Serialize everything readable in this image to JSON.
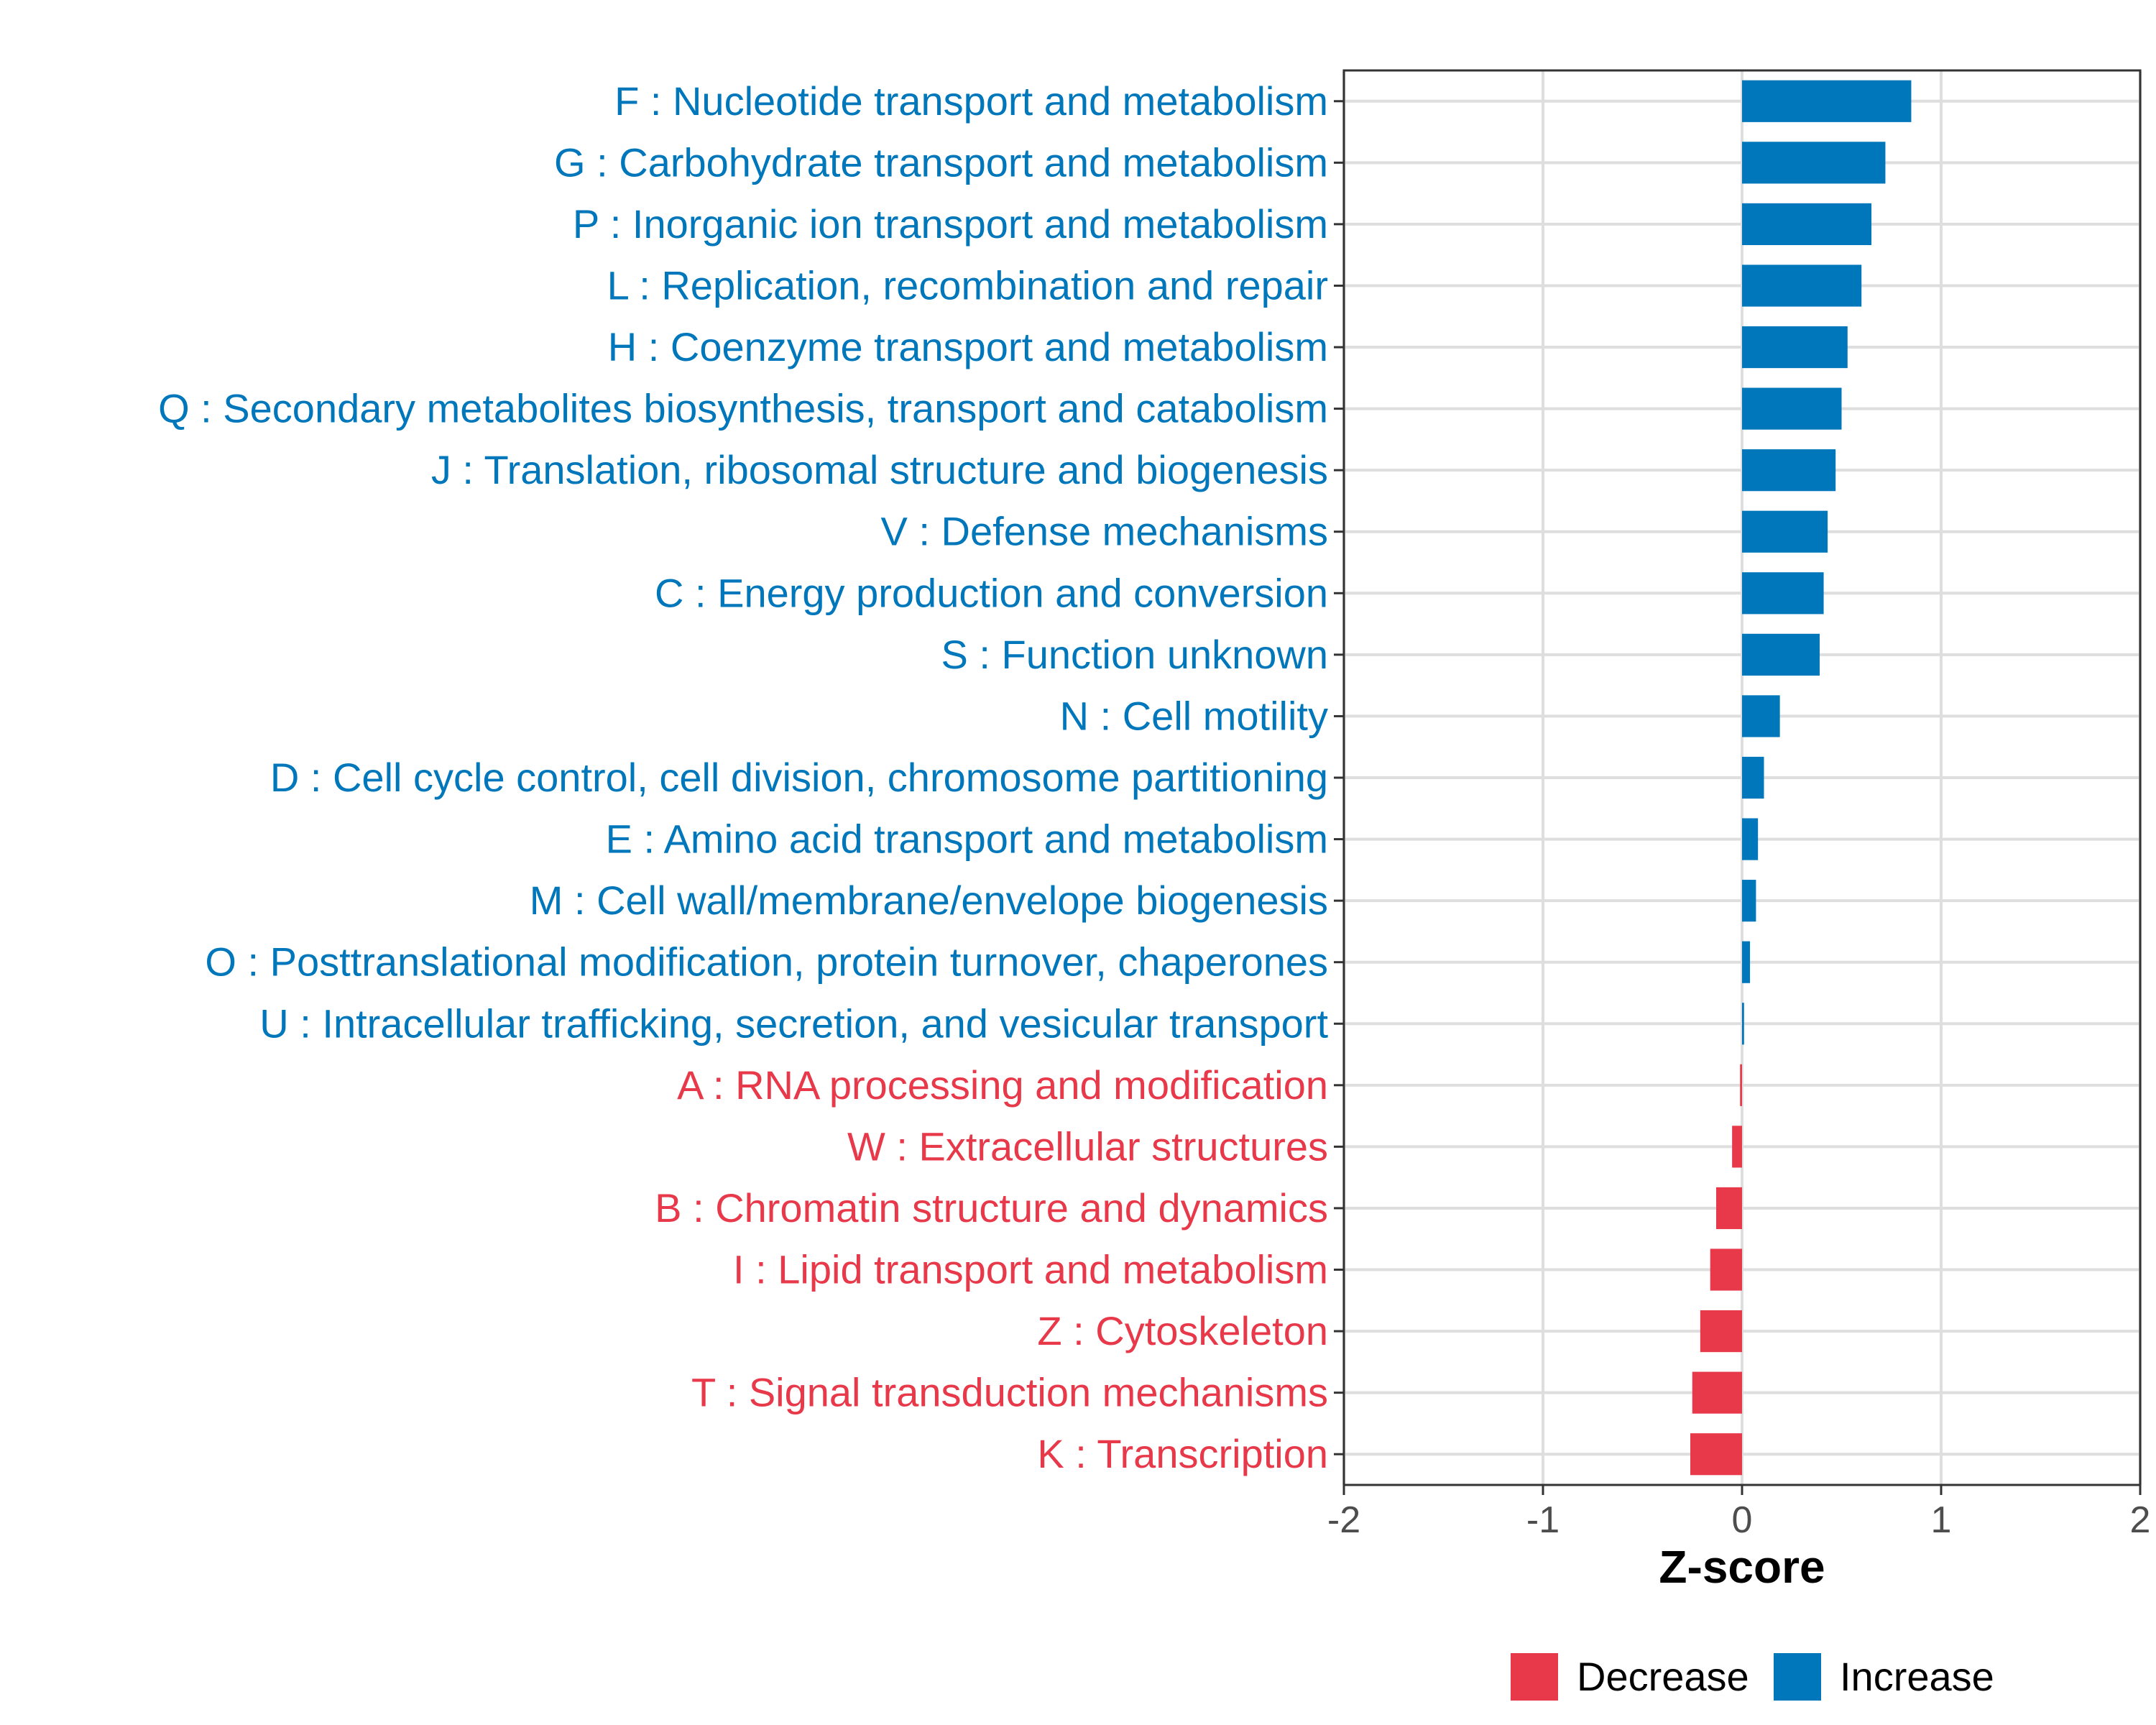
{
  "chart_data": {
    "type": "bar",
    "orientation": "horizontal",
    "title": "",
    "xlabel": "Z-score",
    "ylabel": "",
    "xlim": [
      -2,
      2
    ],
    "xticks": [
      -2,
      -1,
      0,
      1,
      2
    ],
    "xtick_labels": [
      "-2",
      "-1",
      "0",
      "1",
      "2"
    ],
    "grid": true,
    "legend_position": "bottom",
    "colors": {
      "Decrease": "#e8394a",
      "Increase": "#0077bb"
    },
    "legend": [
      {
        "label": "Decrease",
        "color": "#e8394a"
      },
      {
        "label": "Increase",
        "color": "#0077bb"
      }
    ],
    "categories": [
      "F : Nucleotide transport and metabolism",
      "G : Carbohydrate transport and metabolism",
      "P : Inorganic ion transport and metabolism",
      "L : Replication, recombination and repair",
      "H : Coenzyme transport and metabolism",
      "Q : Secondary metabolites biosynthesis, transport and catabolism",
      "J : Translation, ribosomal structure and biogenesis",
      "V : Defense mechanisms",
      "C : Energy production and conversion",
      "S : Function unknown",
      "N : Cell motility",
      "D : Cell cycle control, cell division, chromosome partitioning",
      "E : Amino acid transport and metabolism",
      "M : Cell wall/membrane/envelope biogenesis",
      "O : Posttranslational modification, protein turnover, chaperones",
      "U : Intracellular trafficking, secretion, and vesicular transport",
      "A : RNA processing and modification",
      "W : Extracellular structures",
      "B : Chromatin structure and dynamics",
      "I : Lipid transport and metabolism",
      "Z : Cytoskeleton",
      "T : Signal transduction mechanisms",
      "K : Transcription"
    ],
    "values": [
      0.85,
      0.72,
      0.65,
      0.6,
      0.53,
      0.5,
      0.47,
      0.43,
      0.41,
      0.39,
      0.19,
      0.11,
      0.08,
      0.07,
      0.04,
      0.01,
      -0.01,
      -0.05,
      -0.13,
      -0.16,
      -0.21,
      -0.25,
      -0.26
    ],
    "groups": [
      "Increase",
      "Increase",
      "Increase",
      "Increase",
      "Increase",
      "Increase",
      "Increase",
      "Increase",
      "Increase",
      "Increase",
      "Increase",
      "Increase",
      "Increase",
      "Increase",
      "Increase",
      "Increase",
      "Decrease",
      "Decrease",
      "Decrease",
      "Decrease",
      "Decrease",
      "Decrease",
      "Decrease"
    ]
  }
}
